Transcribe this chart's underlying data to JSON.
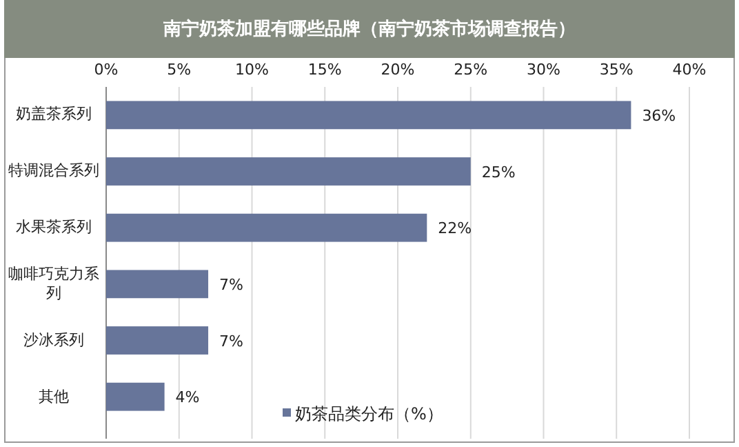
{
  "chart_data": {
    "type": "bar",
    "orientation": "horizontal",
    "title": "南宁奶茶加盟有哪些品牌（南宁奶茶市场调查报告）",
    "categories": [
      "奶盖茶系列",
      "特调混合系列",
      "水果茶系列",
      "咖啡巧克力系列",
      "沙冰系列",
      "其他"
    ],
    "series": [
      {
        "name": "奶茶品类分布（%）",
        "color": "#67759a",
        "values": [
          36,
          25,
          22,
          7,
          7,
          4
        ],
        "value_labels": [
          "36%",
          "25%",
          "22%",
          "7%",
          "7%",
          "4%"
        ]
      }
    ],
    "xlim": [
      0,
      40
    ],
    "xticks": [
      {
        "value": 0,
        "label": "0%"
      },
      {
        "value": 5,
        "label": "5%"
      },
      {
        "value": 10,
        "label": "10%"
      },
      {
        "value": 15,
        "label": "15%"
      },
      {
        "value": 20,
        "label": "20%"
      },
      {
        "value": 25,
        "label": "25%"
      },
      {
        "value": 30,
        "label": "30%"
      },
      {
        "value": 35,
        "label": "35%"
      },
      {
        "value": 40,
        "label": "40%"
      }
    ],
    "grid": "x",
    "legend": "bottom"
  }
}
